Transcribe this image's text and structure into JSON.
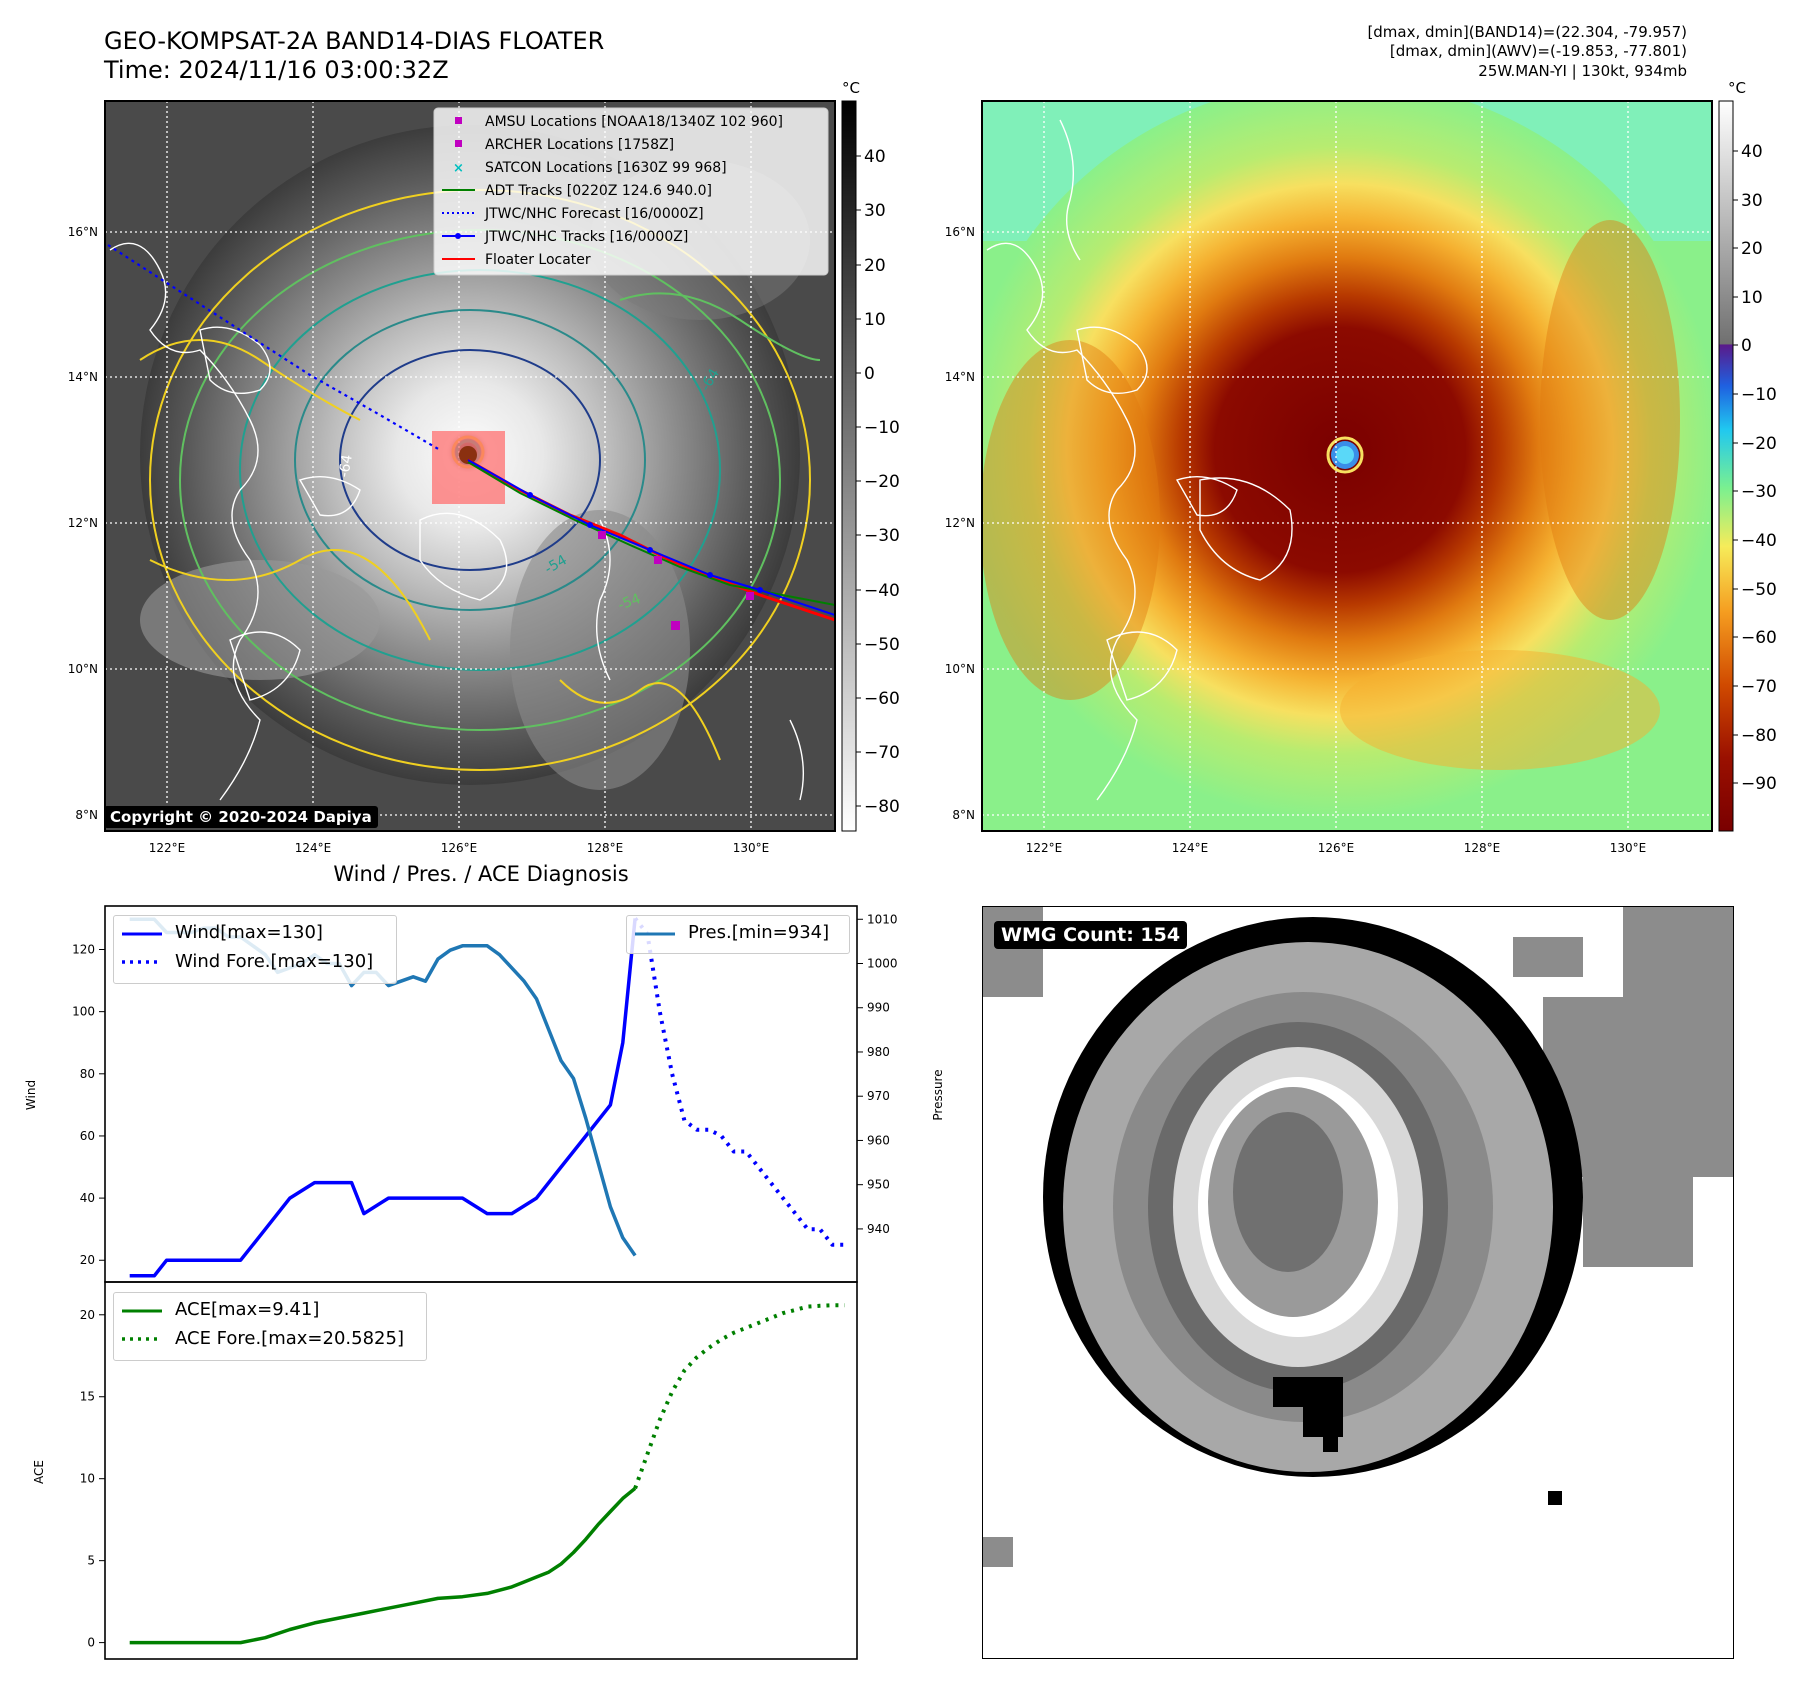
{
  "header": {
    "title": "GEO-KOMPSAT-2A BAND14-DIAS FLOATER",
    "time": "Time: 2024/11/16 03:00:32Z",
    "info_band14": "[dmax, dmin](BAND14)=(22.304, -79.957)",
    "info_awv": "[dmax, dmin](AWV)=(-19.853, -77.801)",
    "info_storm": "25W.MAN-YI | 130kt, 934mb"
  },
  "maps": {
    "lat_labels": [
      "16°N",
      "14°N",
      "12°N",
      "10°N",
      "8°N"
    ],
    "lon_labels": [
      "122°E",
      "124°E",
      "126°E",
      "128°E",
      "130°E"
    ],
    "colorbar_unit": "°C",
    "colorbar_left_ticks": [
      "40",
      "30",
      "20",
      "10",
      "0",
      "−10",
      "−20",
      "−30",
      "−40",
      "−50",
      "−60",
      "−70",
      "−80"
    ],
    "colorbar_right_ticks": [
      "40",
      "30",
      "20",
      "10",
      "0",
      "−10",
      "−20",
      "−30",
      "−40",
      "−50",
      "−60",
      "−70",
      "−80",
      "−90"
    ],
    "contour_labels": [
      "-64",
      "-54",
      "-64",
      "-54"
    ],
    "legend": [
      {
        "label": "AMSU Locations [NOAA18/1340Z 102 960]",
        "color": "#c000c0",
        "style": "square"
      },
      {
        "label": "ARCHER Locations [1758Z]",
        "color": "#c000c0",
        "style": "square"
      },
      {
        "label": "SATCON Locations [1630Z 99 968]",
        "color": "#00bfbf",
        "style": "x"
      },
      {
        "label": "ADT Tracks [0220Z 124.6 940.0]",
        "color": "#008000",
        "style": "line"
      },
      {
        "label": "JTWC/NHC Forecast [16/0000Z]",
        "color": "#0000ff",
        "style": "dotted"
      },
      {
        "label": "JTWC/NHC Tracks [16/0000Z]",
        "color": "#0000ff",
        "style": "line-dot"
      },
      {
        "label": "Floater Locater",
        "color": "#ff0000",
        "style": "line"
      }
    ],
    "copyright": "Copyright © 2020-2024 Dapiya"
  },
  "diagnosis": {
    "title": "Wind / Pres. / ACE Diagnosis",
    "wind_ylabel": "Wind",
    "pressure_ylabel": "Pressure",
    "ace_ylabel": "ACE"
  },
  "wmg": {
    "label": "WMG Count: 154"
  },
  "chart_data": [
    {
      "type": "line",
      "title": "Wind / Pres. / ACE Diagnosis",
      "ylabel": "Wind",
      "ylim": [
        13,
        134
      ],
      "yticks": [
        20,
        40,
        60,
        80,
        100,
        120
      ],
      "xlim": [
        -1,
        60
      ],
      "legend_loc": "upper-left",
      "series": [
        {
          "name": "Wind[max=130]",
          "color": "#0000ff",
          "style": "solid",
          "x": [
            1,
            3,
            4,
            6,
            8,
            10,
            12,
            14,
            16,
            18,
            19,
            20,
            22,
            24,
            26,
            28,
            30,
            32,
            34,
            36,
            38,
            40,
            41,
            42
          ],
          "y": [
            15,
            15,
            20,
            20,
            20,
            20,
            30,
            40,
            45,
            45,
            45,
            35,
            40,
            40,
            40,
            40,
            35,
            35,
            40,
            50,
            60,
            70,
            90,
            130
          ]
        },
        {
          "name": "Wind Fore.[max=130]",
          "color": "#0000ff",
          "style": "dotted",
          "x": [
            42,
            43,
            44,
            45,
            46,
            47,
            48,
            49,
            50,
            51,
            52,
            53,
            54,
            55,
            56,
            57,
            58,
            59
          ],
          "y": [
            130,
            125,
            100,
            80,
            65,
            62,
            62,
            60,
            55,
            55,
            50,
            45,
            40,
            35,
            30,
            30,
            25,
            25
          ]
        }
      ]
    },
    {
      "type": "line",
      "ylabel": "Pressure",
      "ylim": [
        928,
        1013
      ],
      "yticks": [
        940,
        950,
        960,
        970,
        980,
        990,
        1000,
        1010
      ],
      "xlim": [
        -1,
        60
      ],
      "legend_loc": "upper-right",
      "series": [
        {
          "name": "Pres.[min=934]",
          "color": "#1f77b4",
          "style": "solid",
          "x": [
            1,
            2,
            3,
            4,
            5,
            6,
            7,
            8,
            9,
            10,
            11,
            12,
            13,
            14,
            15,
            16,
            17,
            18,
            19,
            20,
            21,
            22,
            23,
            24,
            25,
            26,
            27,
            28,
            29,
            30,
            31,
            32,
            33,
            34,
            35,
            36,
            37,
            38,
            39,
            40,
            41,
            42
          ],
          "y": [
            1010,
            1010,
            1010,
            1007,
            1007,
            1007,
            1008,
            1008,
            1006,
            1006,
            1004,
            1002,
            998,
            999,
            1000,
            1002,
            1000,
            1000,
            995,
            998,
            998,
            995,
            996,
            997,
            996,
            1001,
            1003,
            1004,
            1004,
            1004,
            1002,
            999,
            996,
            992,
            985,
            978,
            974,
            965,
            955,
            945,
            938,
            934
          ]
        }
      ]
    },
    {
      "type": "line",
      "ylabel": "ACE",
      "ylim": [
        -1,
        22
      ],
      "yticks": [
        0,
        5,
        10,
        15,
        20
      ],
      "xlim": [
        -1,
        60
      ],
      "legend_loc": "upper-left",
      "series": [
        {
          "name": "ACE[max=9.41]",
          "color": "#008000",
          "style": "solid",
          "x": [
            1,
            3,
            5,
            7,
            9,
            10,
            12,
            14,
            16,
            18,
            20,
            22,
            24,
            26,
            28,
            30,
            32,
            33,
            34,
            35,
            36,
            37,
            38,
            39,
            40,
            41,
            42
          ],
          "y": [
            0,
            0,
            0,
            0,
            0,
            0,
            0.3,
            0.8,
            1.2,
            1.5,
            1.8,
            2.1,
            2.4,
            2.7,
            2.8,
            3.0,
            3.4,
            3.7,
            4.0,
            4.3,
            4.8,
            5.5,
            6.3,
            7.2,
            8.0,
            8.8,
            9.41
          ]
        },
        {
          "name": "ACE Fore.[max=20.5825]",
          "color": "#008000",
          "style": "dotted",
          "x": [
            42,
            43,
            44,
            45,
            46,
            47,
            48,
            49,
            50,
            51,
            52,
            53,
            54,
            55,
            56,
            57,
            58,
            59
          ],
          "y": [
            9.41,
            11.5,
            13.6,
            15.3,
            16.6,
            17.4,
            18.0,
            18.5,
            18.9,
            19.2,
            19.5,
            19.8,
            20.1,
            20.3,
            20.5,
            20.55,
            20.58,
            20.58
          ]
        }
      ]
    }
  ]
}
